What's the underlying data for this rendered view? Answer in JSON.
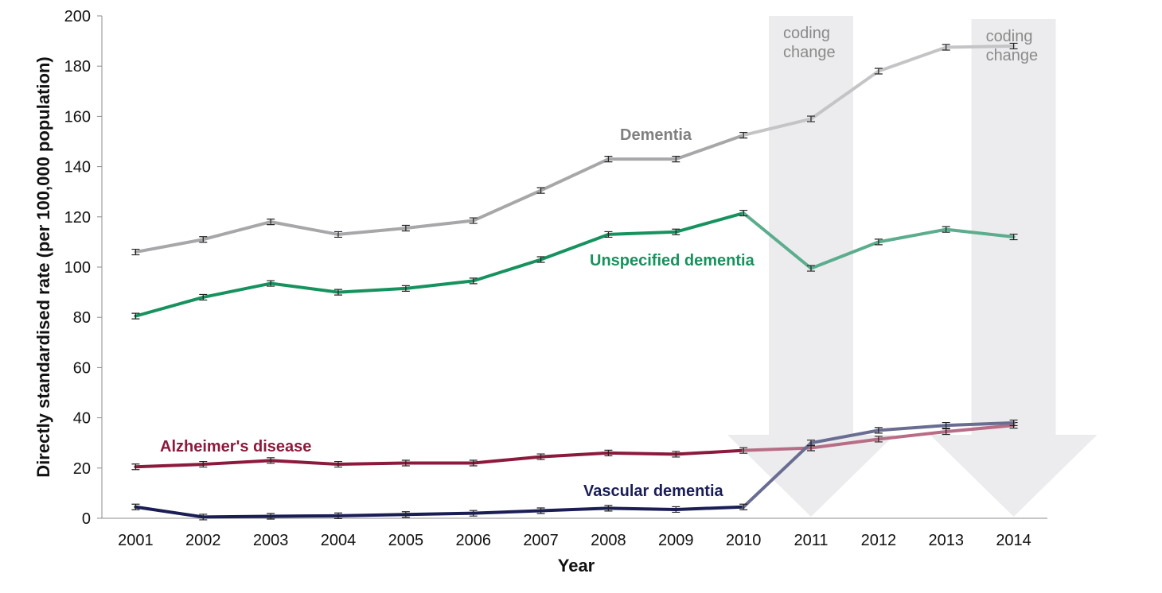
{
  "chart_data": {
    "type": "line",
    "title": "",
    "xlabel": "Year",
    "ylabel": "Directly standardised rate (per 100,000 population)",
    "ylim": [
      0,
      200
    ],
    "yticks": [
      0,
      20,
      40,
      60,
      80,
      100,
      120,
      140,
      160,
      180,
      200
    ],
    "grid": false,
    "error_bars": true,
    "categories": [
      "2001",
      "2002",
      "2003",
      "2004",
      "2005",
      "2006",
      "2007",
      "2008",
      "2009",
      "2010",
      "2011",
      "2012",
      "2013",
      "2014"
    ],
    "series": [
      {
        "name": "Dementia",
        "color": "#a7a7a9",
        "highlight_color": "#c4c4c6",
        "values": [
          106,
          111,
          118,
          113,
          115.5,
          118.5,
          130.5,
          143,
          143,
          152.5,
          159,
          178,
          187.5,
          188
        ]
      },
      {
        "name": "Unspecified dementia",
        "color": "#16925e",
        "highlight_color": "#5bad8e",
        "values": [
          80.5,
          88,
          93.5,
          90,
          91.5,
          94.5,
          103,
          113,
          114,
          121.5,
          99.5,
          110,
          115,
          112
        ]
      },
      {
        "name": "Alzheimer's disease",
        "color": "#8b1a3c",
        "highlight_color": "#b86d86",
        "values": [
          20.5,
          21.5,
          23,
          21.5,
          22,
          22,
          24.5,
          26,
          25.5,
          27,
          28,
          31.5,
          34.5,
          37
        ]
      },
      {
        "name": "Vascular dementia",
        "color": "#1a1e55",
        "highlight_color": "#6a6d92",
        "values": [
          4.5,
          0.5,
          0.8,
          1,
          1.5,
          2,
          3,
          4,
          3.5,
          4.5,
          30,
          35,
          37,
          38
        ]
      }
    ],
    "annotations": [
      {
        "text_lines": [
          "coding",
          "change"
        ],
        "category": "2011"
      },
      {
        "text_lines": [
          "coding",
          "change"
        ],
        "category": "2014"
      }
    ],
    "annotation_color": "#ebebed"
  }
}
